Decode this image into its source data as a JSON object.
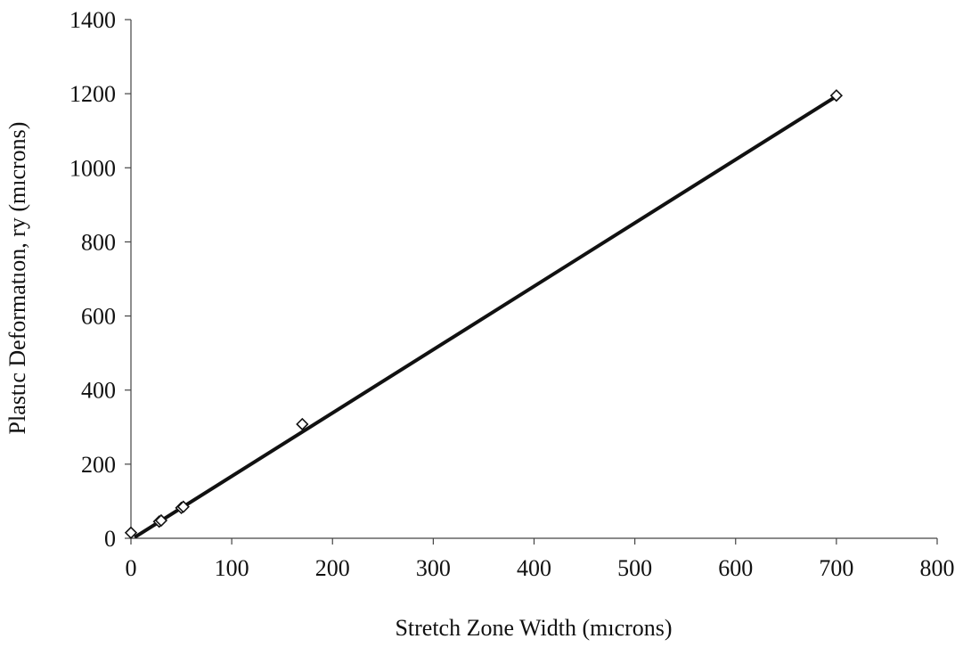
{
  "chart_data": {
    "type": "scatter",
    "title": "",
    "xlabel": "Stretch Zone Width (mıcrons)",
    "ylabel": "Plastıc Deformatıon, ry (mıcrons)",
    "xlim": [
      0,
      800
    ],
    "ylim": [
      0,
      1400
    ],
    "xticks": [
      0,
      100,
      200,
      300,
      400,
      500,
      600,
      700,
      800
    ],
    "yticks": [
      0,
      200,
      400,
      600,
      800,
      1000,
      1200,
      1400
    ],
    "grid": false,
    "legend": "none",
    "series": [
      {
        "marker": "diamond-open",
        "x": [
          0,
          28,
          30,
          50,
          52,
          170,
          700
        ],
        "y": [
          15,
          45,
          48,
          82,
          85,
          308,
          1195
        ]
      }
    ],
    "trendline": {
      "type": "linear",
      "x": [
        5,
        700
      ],
      "y": [
        5,
        1193
      ]
    },
    "colors": {
      "line": "#111111",
      "marker": "#111111",
      "axis": "#444444"
    }
  }
}
